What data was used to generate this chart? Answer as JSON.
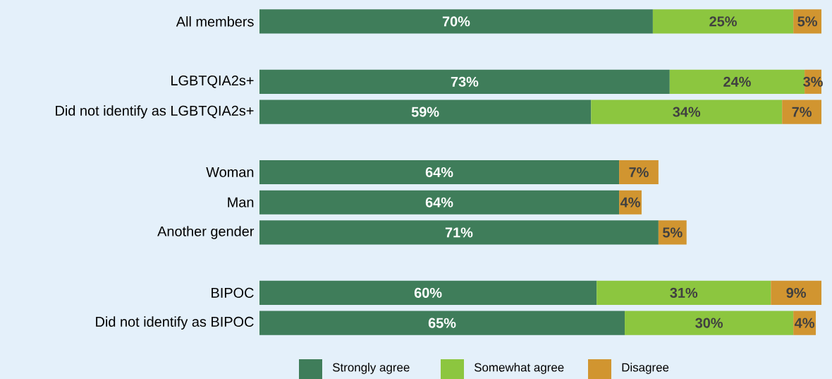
{
  "chart_data": {
    "type": "bar",
    "orientation": "horizontal",
    "stacked": true,
    "xlim": [
      0,
      100
    ],
    "tick_labels": "y",
    "legend": "bottom",
    "categories": [
      "All members",
      null,
      "LGBTQIA2s+",
      "Did not identify as LGBTQIA2s+",
      null,
      "Woman",
      "Man",
      "Another gender",
      null,
      "BIPOC",
      "Did not identify as BIPOC"
    ],
    "series": [
      {
        "name": "Strongly agree",
        "color": "#3f7d5a",
        "values": [
          70,
          null,
          73,
          59,
          null,
          64,
          64,
          71,
          null,
          60,
          65
        ],
        "value_labels": [
          "70%",
          null,
          "73%",
          "59%",
          null,
          "64%",
          "64%",
          "71%",
          null,
          "60%",
          "65%"
        ]
      },
      {
        "name": "Somewhat agree",
        "color": "#8cc63f",
        "values": [
          25,
          null,
          24,
          34,
          null,
          null,
          null,
          null,
          null,
          31,
          30
        ],
        "value_labels": [
          "25%",
          null,
          "24%",
          "34%",
          null,
          null,
          null,
          null,
          null,
          "31%",
          "30%"
        ]
      },
      {
        "name": "Disagree",
        "color": "#d19530",
        "values": [
          5,
          null,
          3,
          7,
          null,
          7,
          4,
          5,
          null,
          9,
          4
        ],
        "value_labels": [
          "5%",
          null,
          "3%",
          "7%",
          null,
          "7%",
          "4%",
          "5%",
          null,
          "9%",
          "4%"
        ]
      }
    ]
  }
}
